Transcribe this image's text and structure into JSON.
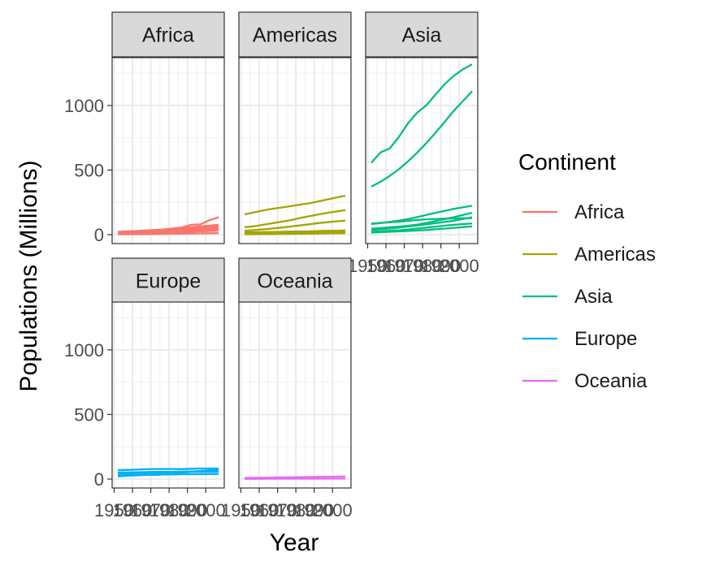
{
  "chart_data": {
    "type": "line",
    "facet_by": "Continent",
    "xlabel": "Year",
    "ylabel": "Populations (Millions)",
    "legend_title": "Continent",
    "legend_position": "right",
    "grid": true,
    "xlim": [
      1952,
      2007
    ],
    "ylim": [
      0,
      1320
    ],
    "x_ticks": [
      1950,
      1960,
      1970,
      1980,
      1990,
      2000
    ],
    "x_tick_labels": [
      "1950",
      "1960",
      "1970",
      "1980",
      "1990",
      "2000"
    ],
    "y_ticks": [
      0,
      500,
      1000
    ],
    "y_tick_labels": [
      "0",
      "500",
      "1000"
    ],
    "colors": {
      "Africa": "#F8766D",
      "Americas": "#A3A500",
      "Asia": "#00BF7D",
      "Europe": "#00B0F6",
      "Oceania": "#E76BF3"
    },
    "x": [
      1952,
      1957,
      1962,
      1967,
      1972,
      1977,
      1982,
      1987,
      1992,
      1997,
      2002,
      2007
    ],
    "panels": [
      {
        "name": "Africa",
        "series": [
          {
            "values": [
              22,
              25,
              28,
              32,
              36,
              41,
              48,
              56,
              76,
              80,
              111,
              135
            ]
          },
          {
            "values": [
              21,
              24,
              27,
              30,
              34,
              38,
              44,
              50,
              58,
              65,
              70,
              77
            ]
          },
          {
            "values": [
              20,
              22,
              24,
              27,
              30,
              34,
              38,
              42,
              48,
              54,
              60,
              67
            ]
          },
          {
            "values": [
              18,
              20,
              22,
              24,
              27,
              30,
              33,
              37,
              41,
              45,
              50,
              55
            ]
          },
          {
            "values": [
              14,
              15,
              17,
              19,
              21,
              24,
              27,
              30,
              33,
              36,
              40,
              44
            ]
          },
          {
            "values": [
              9,
              10,
              11,
              12,
              14,
              16,
              18,
              20,
              22,
              25,
              28,
              31
            ]
          },
          {
            "values": [
              3,
              3,
              4,
              4,
              5,
              6,
              7,
              8,
              9,
              10,
              11,
              12
            ]
          }
        ]
      },
      {
        "name": "Americas",
        "series": [
          {
            "values": [
              157,
              172,
              187,
              199,
              210,
              220,
              232,
              242,
              257,
              272,
              288,
              301
            ]
          },
          {
            "values": [
              57,
              65,
              76,
              88,
              100,
              112,
              128,
              142,
              155,
              168,
              179,
              190
            ]
          },
          {
            "values": [
              30,
              35,
              41,
              47,
              55,
              63,
              71,
              80,
              89,
              96,
              103,
              109
            ]
          },
          {
            "values": [
              18,
              19,
              20,
              21,
              22,
              24,
              25,
              26,
              28,
              30,
              31,
              33
            ]
          },
          {
            "values": [
              15,
              16,
              17,
              18,
              19,
              20,
              21,
              22,
              24,
              26,
              28,
              30
            ]
          },
          {
            "values": [
              10,
              11,
              12,
              13,
              14,
              15,
              16,
              17,
              18,
              19,
              20,
              21
            ]
          },
          {
            "values": [
              4,
              4,
              5,
              5,
              6,
              6,
              7,
              8,
              9,
              10,
              11,
              12
            ]
          }
        ]
      },
      {
        "name": "Asia",
        "series": [
          {
            "values": [
              556,
              637,
              666,
              755,
              862,
              944,
              1000,
              1084,
              1165,
              1230,
              1280,
              1319
            ]
          },
          {
            "values": [
              372,
              409,
              454,
              506,
              567,
              634,
              708,
              788,
              872,
              959,
              1034,
              1110
            ]
          },
          {
            "values": [
              82,
              90,
              99,
              109,
              121,
              136,
              153,
              169,
              184,
              199,
              211,
              224
            ]
          },
          {
            "values": [
              86,
              91,
              95,
              100,
              107,
              114,
              119,
              122,
              124,
              126,
              127,
              128
            ]
          },
          {
            "values": [
              46,
              51,
              57,
              62,
              69,
              78,
              91,
              105,
              120,
              135,
              153,
              169
            ]
          },
          {
            "values": [
              37,
              42,
              48,
              55,
              63,
              71,
              80,
              89,
              98,
              108,
              121,
              135
            ]
          },
          {
            "values": [
              22,
              26,
              30,
              34,
              40,
              48,
              55,
              62,
              70,
              76,
              82,
              87
            ]
          },
          {
            "values": [
              17,
              19,
              22,
              25,
              28,
              32,
              36,
              42,
              47,
              53,
              58,
              64
            ]
          }
        ]
      },
      {
        "name": "Europe",
        "series": [
          {
            "values": [
              69,
              71,
              73,
              76,
              78,
              78,
              78,
              77,
              80,
              82,
              82,
              82
            ]
          },
          {
            "values": [
              51,
              51,
              53,
              54,
              56,
              56,
              56,
              57,
              58,
              58,
              59,
              61
            ]
          },
          {
            "values": [
              42,
              44,
              46,
              47,
              50,
              52,
              54,
              55,
              57,
              57,
              59,
              60
            ]
          },
          {
            "values": [
              47,
              50,
              50,
              52,
              54,
              56,
              56,
              56,
              57,
              57,
              57,
              58
            ]
          },
          {
            "values": [
              21,
              25,
              28,
              33,
              37,
              42,
              47,
              52,
              58,
              63,
              67,
              71
            ]
          },
          {
            "values": [
              28,
              30,
              31,
              32,
              34,
              36,
              38,
              39,
              39,
              39,
              40,
              40
            ]
          },
          {
            "values": [
              25,
              28,
              30,
              32,
              33,
              35,
              36,
              38,
              38,
              39,
              39,
              39
            ]
          }
        ]
      },
      {
        "name": "Oceania",
        "series": [
          {
            "values": [
              9,
              10,
              11,
              12,
              13,
              14,
              15,
              16,
              17,
              18,
              19,
              21
            ]
          },
          {
            "values": [
              2,
              2,
              2,
              3,
              3,
              3,
              3,
              3,
              3,
              4,
              4,
              4
            ]
          }
        ]
      }
    ]
  }
}
